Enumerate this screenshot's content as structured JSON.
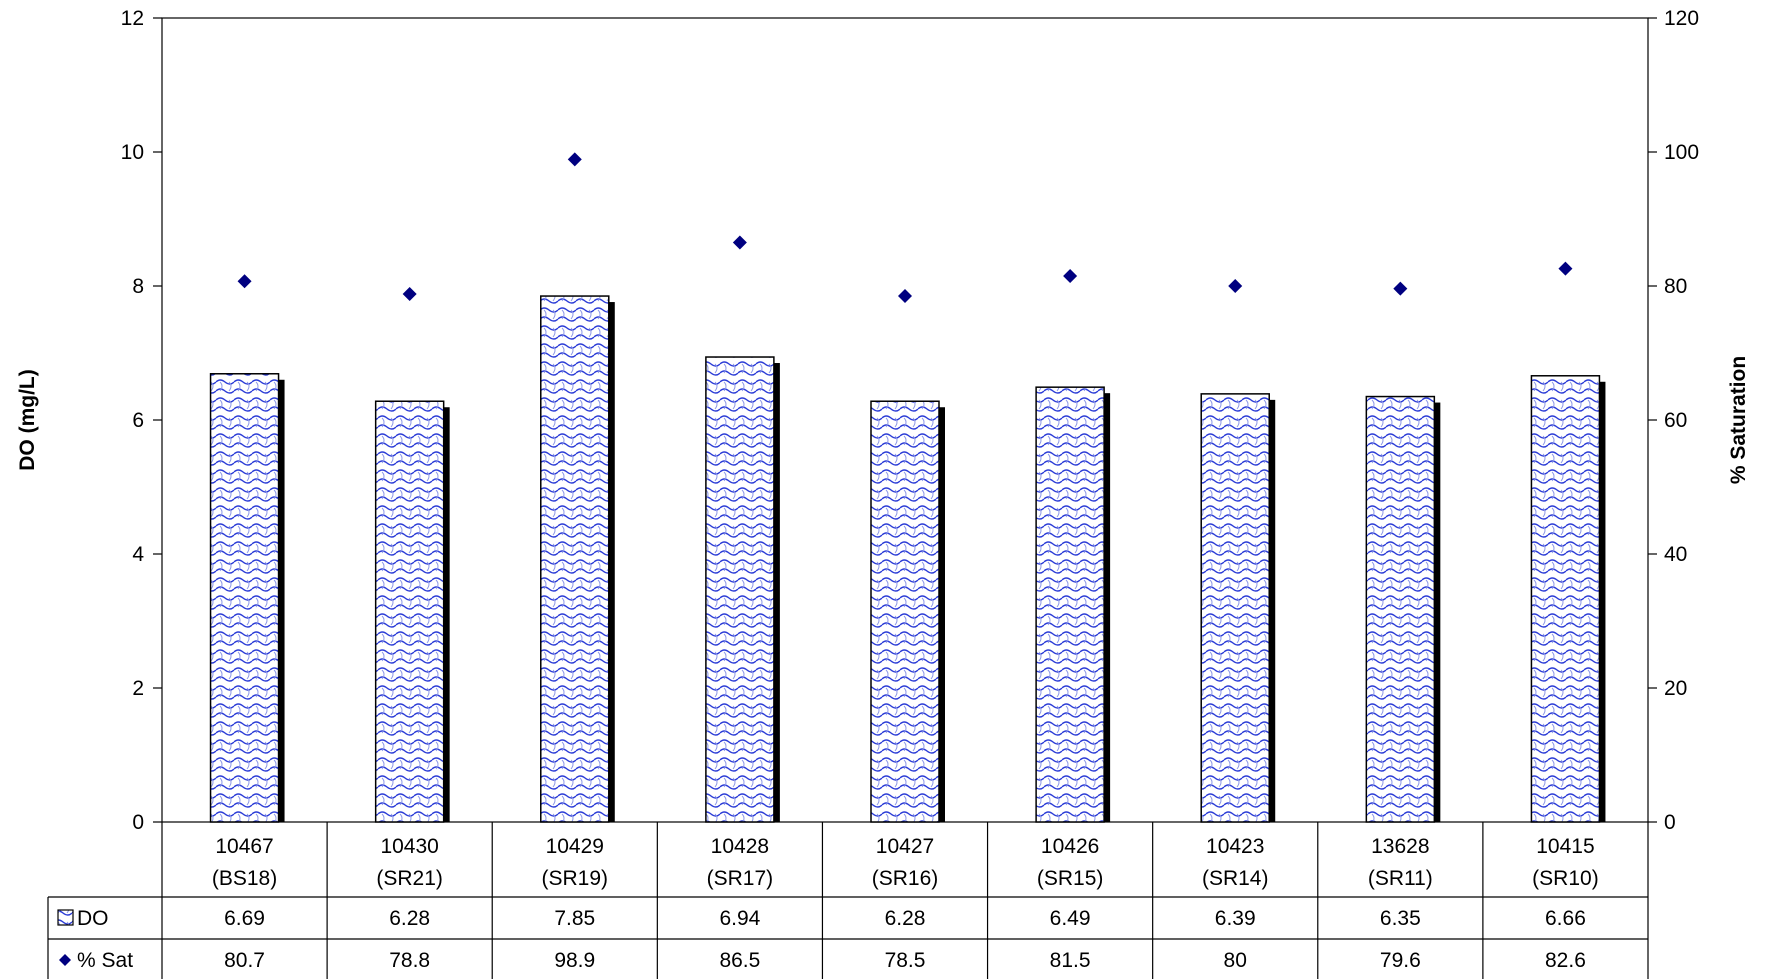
{
  "chart_data": {
    "type": "bar",
    "categories": [
      [
        "10467",
        "(BS18)"
      ],
      [
        "10430",
        "(SR21)"
      ],
      [
        "10429",
        "(SR19)"
      ],
      [
        "10428",
        "(SR17)"
      ],
      [
        "10427",
        "(SR16)"
      ],
      [
        "10426",
        "(SR15)"
      ],
      [
        "10423",
        "(SR14)"
      ],
      [
        "13628",
        "(SR11)"
      ],
      [
        "10415",
        "(SR10)"
      ]
    ],
    "series": [
      {
        "name": "DO",
        "type": "bar",
        "axis": "left",
        "values": [
          6.69,
          6.28,
          7.85,
          6.94,
          6.28,
          6.49,
          6.39,
          6.35,
          6.66
        ],
        "table_values": [
          "6.69",
          "6.28",
          "7.85",
          "6.94",
          "6.28",
          "6.49",
          "6.39",
          "6.35",
          "6.66"
        ],
        "color": "#2a3bd6"
      },
      {
        "name": "% Sat",
        "type": "scatter",
        "marker": "diamond",
        "axis": "right",
        "values": [
          80.7,
          78.8,
          98.9,
          86.5,
          78.5,
          81.5,
          80,
          79.6,
          82.6
        ],
        "table_values": [
          "80.7",
          "78.8",
          "98.9",
          "86.5",
          "78.5",
          "81.5",
          "80",
          "79.6",
          "82.6"
        ],
        "color": "#000080"
      }
    ],
    "ylabel": "DO (mg/L)",
    "y2label": "% Saturation",
    "ylim": [
      0,
      12
    ],
    "y2lim": [
      0,
      120
    ],
    "yticks": [
      "0",
      "2",
      "4",
      "6",
      "8",
      "10",
      "12"
    ],
    "y2ticks": [
      "0",
      "20",
      "40",
      "60",
      "80",
      "100",
      "120"
    ],
    "grid": false,
    "legend": "data-table"
  }
}
